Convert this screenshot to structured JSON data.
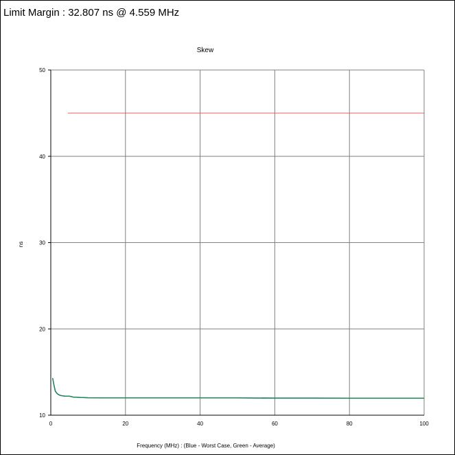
{
  "header": {
    "limit_margin_text": "Limit Margin : 32.807 ns @ 4.559 MHz"
  },
  "chart_data": {
    "type": "line",
    "title": "Skew",
    "xlabel": "Frequency (MHz) : (Blue - Worst Case, Green - Average)",
    "ylabel": "ns",
    "xlim": [
      0,
      100
    ],
    "ylim": [
      10,
      50
    ],
    "xticks": [
      "0",
      "20",
      "40",
      "60",
      "80",
      "100"
    ],
    "yticks": [
      "10",
      "20",
      "30",
      "40",
      "50"
    ],
    "grid": true,
    "colors": {
      "limit": "#e06060",
      "worst_case": "#3050c0",
      "average": "#1a8a4a",
      "grid": "#808080",
      "axis": "#000000"
    },
    "series": [
      {
        "x": [
          4.559,
          100
        ],
        "y": [
          45.0,
          45.0
        ]
      },
      {
        "x": [
          0.5,
          0.8,
          1.2,
          1.6,
          2.0,
          2.5,
          3.0,
          4.0,
          5.0,
          6.0,
          8.0,
          10.0,
          15.0,
          20.0,
          30.0,
          40.0,
          50.0,
          60.0,
          70.0,
          80.0,
          90.0,
          100.0
        ],
        "y": [
          14.3,
          13.6,
          12.8,
          12.55,
          12.4,
          12.3,
          12.25,
          12.2,
          12.2,
          12.1,
          12.05,
          12.02,
          12.0,
          12.0,
          12.0,
          12.0,
          12.0,
          11.98,
          11.98,
          11.97,
          11.97,
          11.97
        ]
      },
      {
        "x": [
          0.5,
          0.8,
          1.2,
          1.6,
          2.0,
          2.5,
          3.0,
          4.0,
          5.0,
          6.0,
          8.0,
          10.0,
          15.0,
          20.0,
          30.0,
          40.0,
          50.0,
          60.0,
          70.0,
          80.0,
          90.0,
          100.0
        ],
        "y": [
          14.3,
          13.6,
          12.8,
          12.55,
          12.4,
          12.3,
          12.25,
          12.2,
          12.2,
          12.1,
          12.05,
          12.02,
          12.0,
          12.0,
          12.0,
          12.0,
          12.0,
          11.98,
          11.98,
          11.97,
          11.97,
          11.97
        ]
      }
    ]
  }
}
